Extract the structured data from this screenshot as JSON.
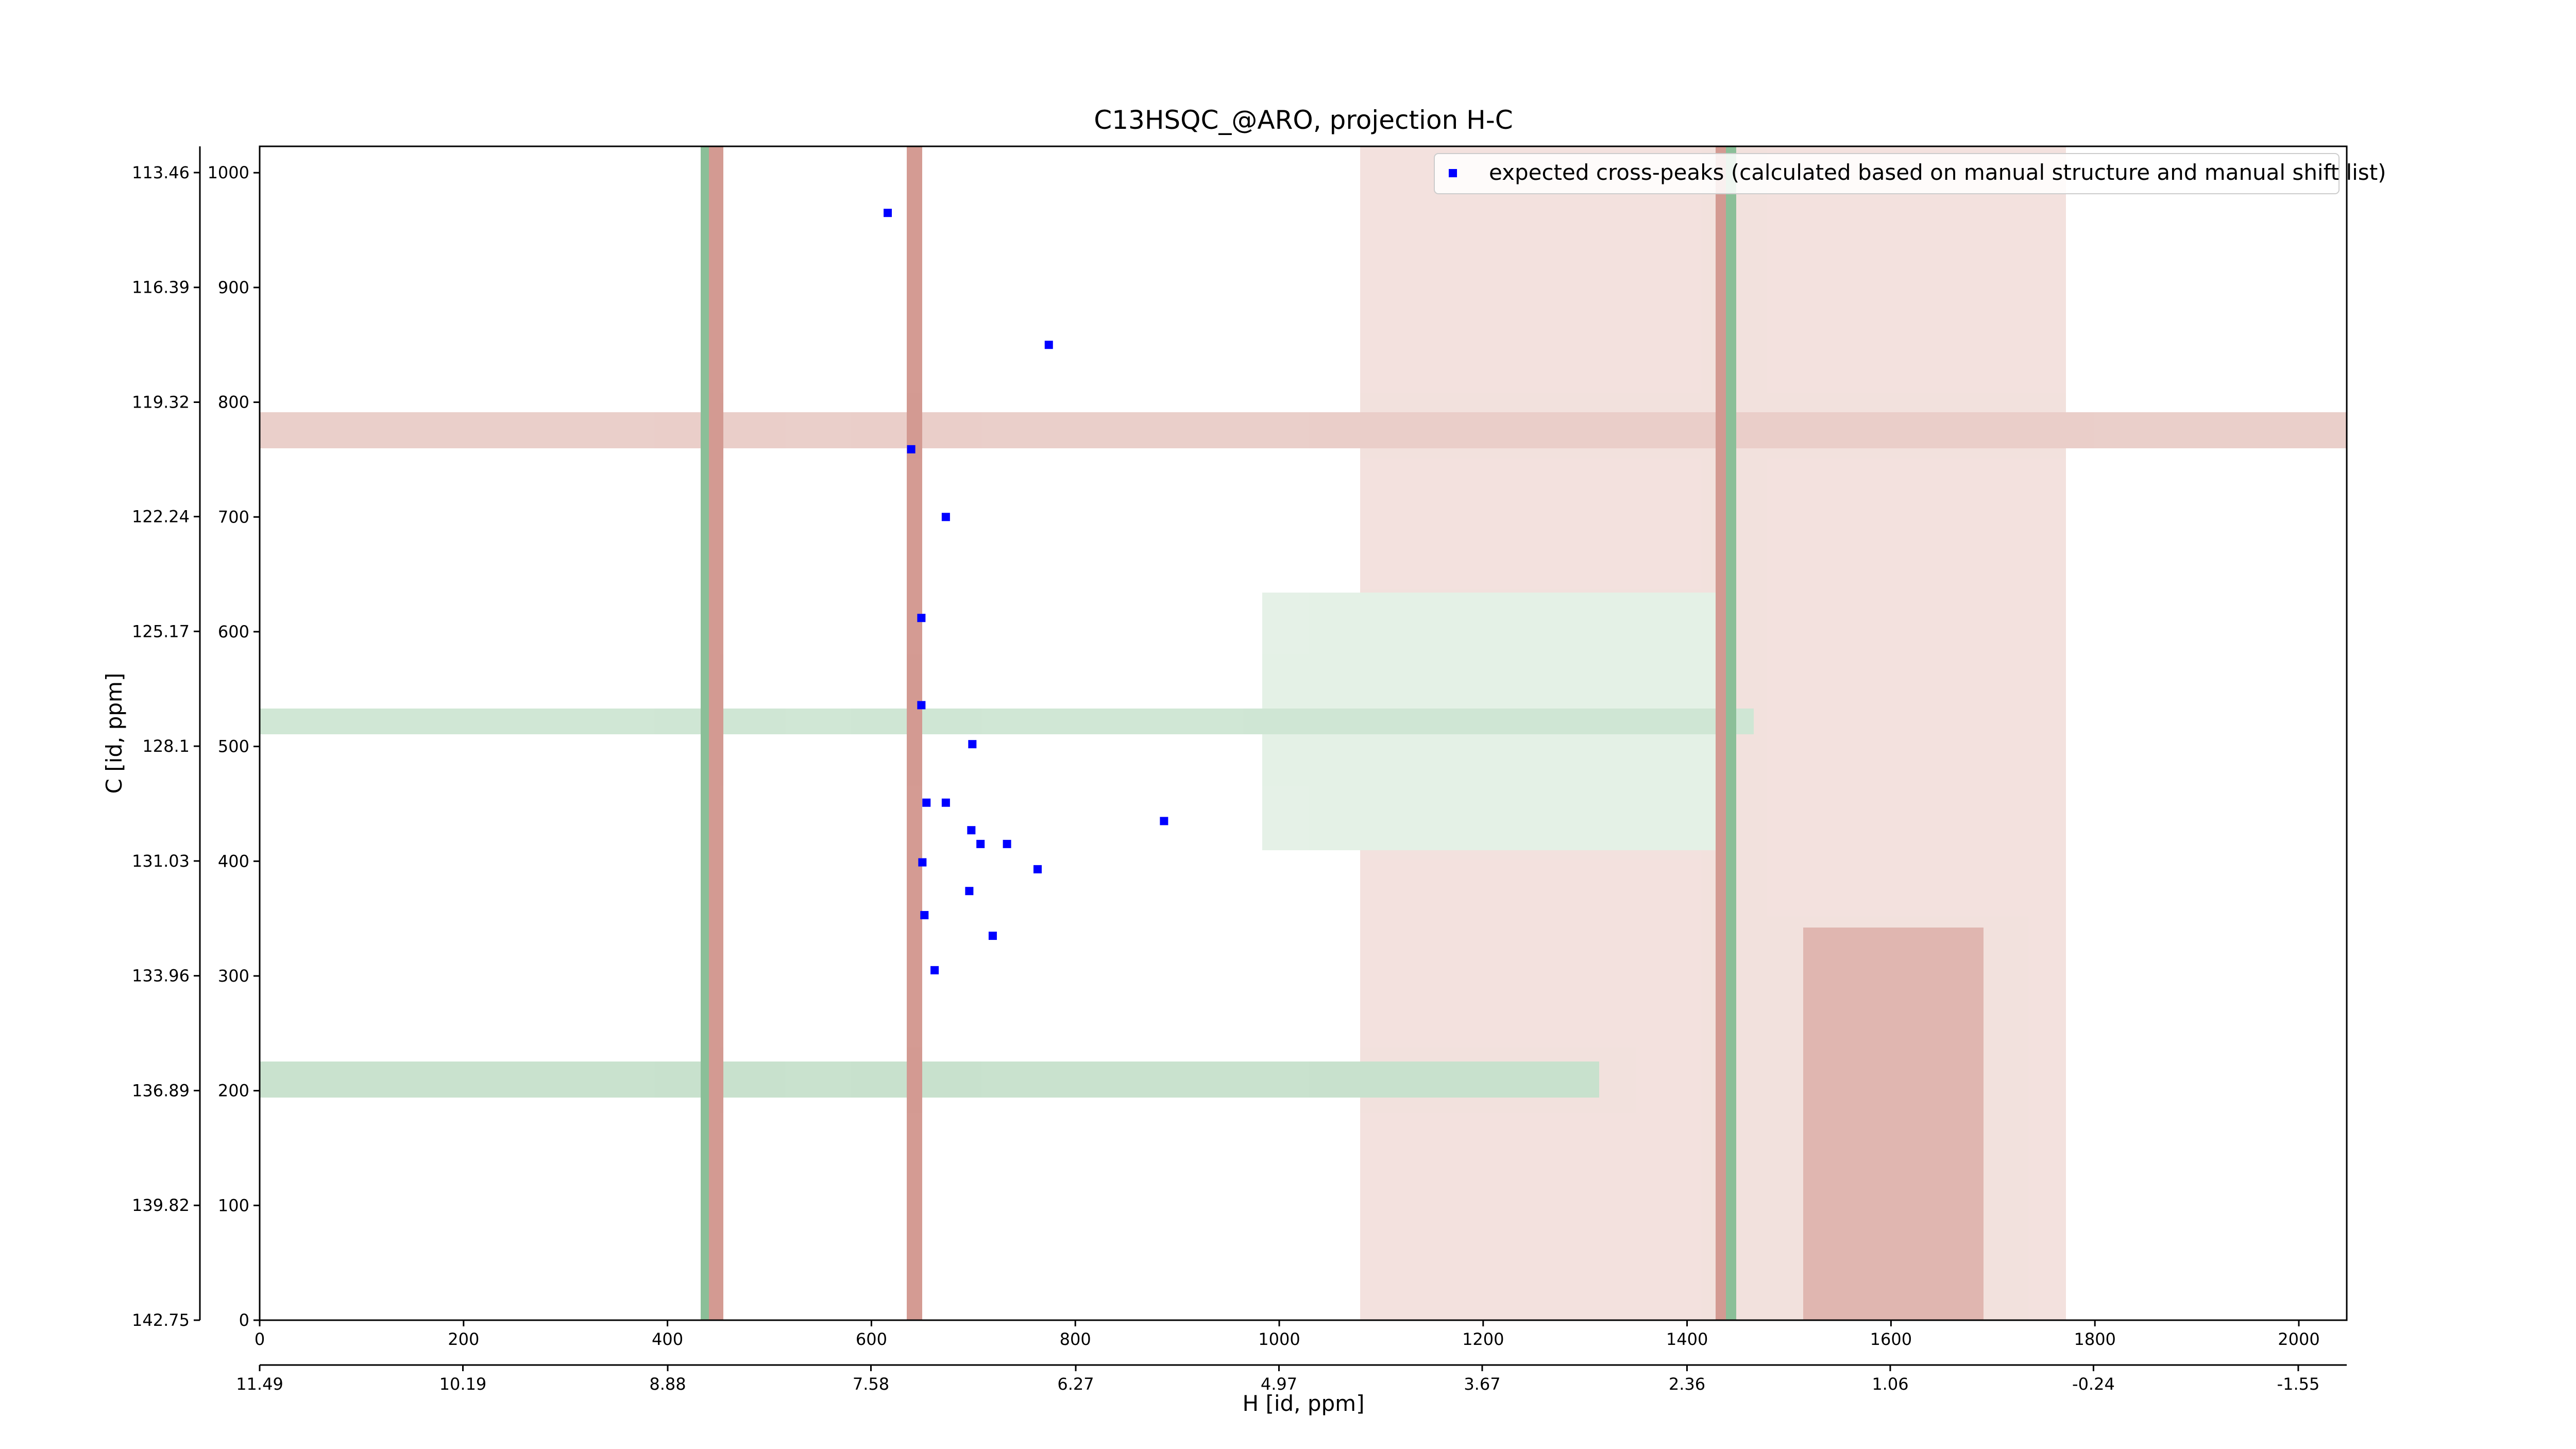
{
  "chart_data": {
    "type": "scatter",
    "title": "C13HSQC_@ARO, projection H-C",
    "x_label": "H [id, ppm]",
    "y_label": "C [id, ppm]",
    "legend": "upper right",
    "series": [
      {
        "name": "expected cross-peaks (calculated based on manual structure and manual shift list)",
        "color": "#0000ff",
        "x": [
          616,
          774,
          639,
          673,
          649,
          649,
          699,
          654,
          673,
          887,
          698,
          707,
          733,
          650,
          763,
          696,
          652,
          719,
          662
        ],
        "values": [
          965,
          850,
          759,
          700,
          612,
          536,
          502,
          451,
          451,
          435,
          427,
          415,
          415,
          399,
          393,
          374,
          353,
          335,
          305
        ]
      }
    ],
    "xlim": [
      0,
      2047
    ],
    "ylim": [
      0,
      1023
    ],
    "xticks": [
      0,
      200,
      400,
      600,
      800,
      1000,
      1200,
      1400,
      1600,
      1800,
      2000
    ],
    "yticks": [
      0,
      100,
      200,
      300,
      400,
      500,
      600,
      700,
      800,
      900,
      1000
    ],
    "x2lim": [
      11.49,
      -1.86
    ],
    "x2ticks": [
      11.49,
      10.19,
      8.88,
      7.58,
      6.27,
      4.97,
      3.67,
      2.36,
      1.06,
      -0.24,
      -1.55
    ],
    "y2lim": [
      142.75,
      112.79
    ],
    "y2ticks": [
      142.75,
      139.82,
      136.89,
      133.96,
      131.03,
      128.1,
      125.17,
      122.24,
      119.32,
      116.39,
      113.46
    ]
  }
}
